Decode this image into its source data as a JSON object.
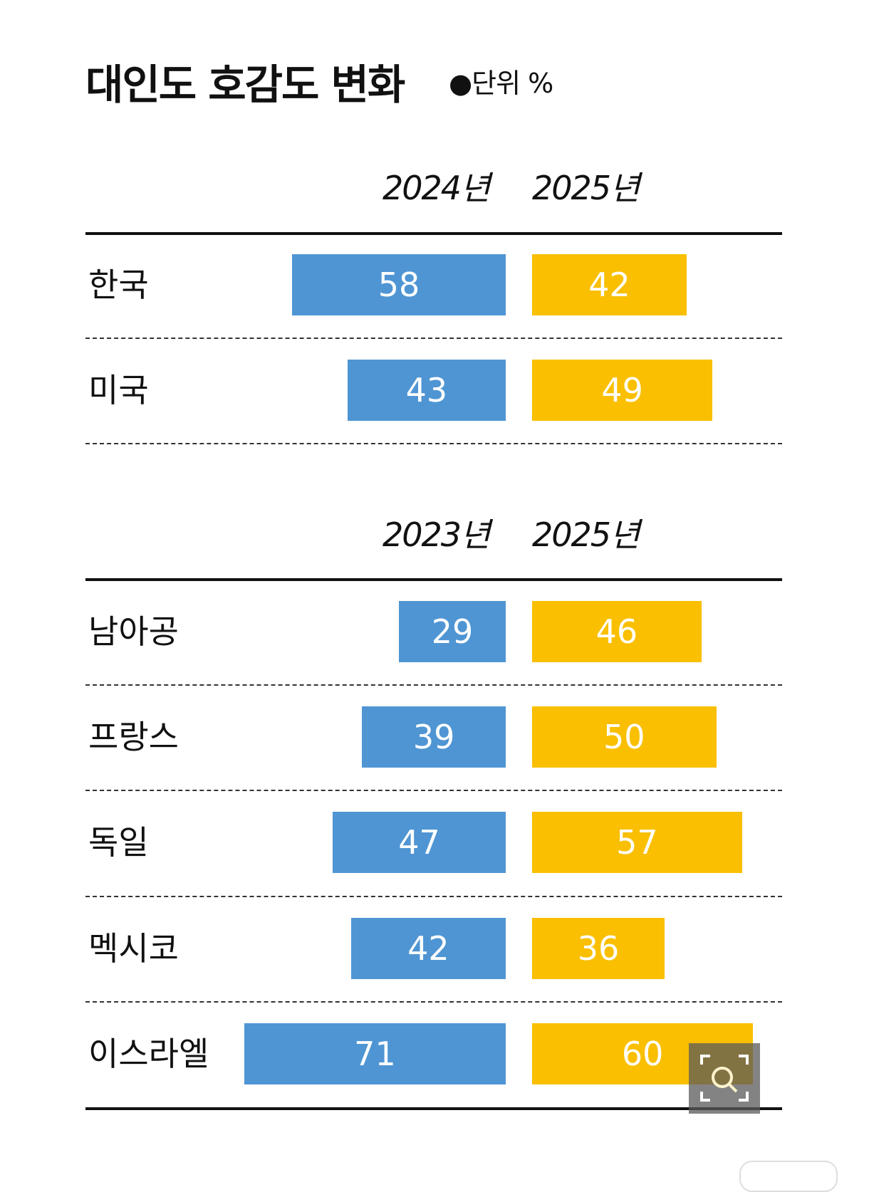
{
  "chart_data": {
    "type": "bar",
    "title": "대인도 호감도 변화",
    "unit": "●단위 %",
    "colors": {
      "earlier": "#4f95d3",
      "later": "#f9bf00"
    },
    "groups": [
      {
        "years": [
          "2024년",
          "2025년"
        ],
        "categories": [
          "한국",
          "미국"
        ],
        "series": [
          {
            "name": "2024년",
            "values": [
              58,
              43
            ]
          },
          {
            "name": "2025년",
            "values": [
              42,
              49
            ]
          }
        ]
      },
      {
        "years": [
          "2023년",
          "2025년"
        ],
        "categories": [
          "남아공",
          "프랑스",
          "독일",
          "멕시코",
          "이스라엘"
        ],
        "series": [
          {
            "name": "2023년",
            "values": [
              29,
              39,
              47,
              42,
              71
            ]
          },
          {
            "name": "2025년",
            "values": [
              46,
              50,
              57,
              36,
              60
            ]
          }
        ]
      }
    ]
  }
}
